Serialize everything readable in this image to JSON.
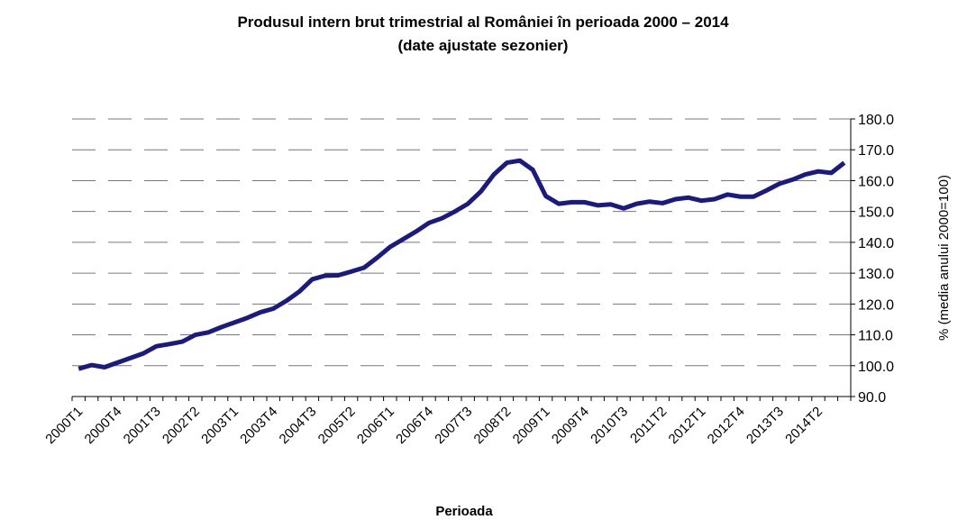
{
  "chart_data": {
    "type": "line",
    "title": "Produsul intern brut trimestrial al României în perioada 2000 – 2014",
    "subtitle": "(date ajustate sezonier)",
    "x_label": "Perioada",
    "y_label": "% (media anului 2000=100)",
    "categories": [
      "2000T1",
      null,
      null,
      "2000T4",
      null,
      null,
      "2001T3",
      null,
      null,
      "2002T2",
      null,
      null,
      "2003T1",
      null,
      null,
      "2003T4",
      null,
      null,
      "2004T3",
      null,
      null,
      "2005T2",
      null,
      null,
      "2006T1",
      null,
      null,
      "2006T4",
      null,
      null,
      "2007T3",
      null,
      null,
      "2008T2",
      null,
      null,
      "2009T1",
      null,
      null,
      "2009T4",
      null,
      null,
      "2010T3",
      null,
      null,
      "2011T2",
      null,
      null,
      "2012T1",
      null,
      null,
      "2012T4",
      null,
      null,
      "2013T3",
      null,
      null,
      "2014T2",
      null,
      null
    ],
    "series": [
      {
        "color": "#1a1a80",
        "values": [
          99,
          100.2,
          99.5,
          101,
          102.5,
          104,
          106.3,
          107,
          107.8,
          110,
          110.8,
          112.5,
          114,
          115.5,
          117.3,
          118.5,
          121,
          124,
          128,
          129.2,
          129.3,
          130.5,
          131.8,
          135,
          138.5,
          141,
          143.5,
          146.3,
          147.8,
          150,
          152.5,
          156.5,
          162,
          165.8,
          166.5,
          163.5,
          155,
          152.5,
          153,
          153,
          152,
          152.3,
          151,
          152.5,
          153.2,
          152.7,
          154,
          154.5,
          153.5,
          154,
          155.5,
          154.8,
          154.8,
          156.8,
          159,
          160.3,
          162,
          163,
          162.5,
          165.8
        ]
      }
    ],
    "ylim": [
      90,
      180
    ],
    "yticks": [
      {
        "value": 90,
        "label": "90.0"
      },
      {
        "value": 100,
        "label": "100.0"
      },
      {
        "value": 110,
        "label": "110.0"
      },
      {
        "value": 120,
        "label": "120.0"
      },
      {
        "value": 130,
        "label": "130.0"
      },
      {
        "value": 140,
        "label": "140.0"
      },
      {
        "value": 150,
        "label": "150.0"
      },
      {
        "value": 160,
        "label": "160.0"
      },
      {
        "value": 170,
        "label": "170.0"
      },
      {
        "value": 180,
        "label": "180.0"
      }
    ],
    "grid": true
  }
}
